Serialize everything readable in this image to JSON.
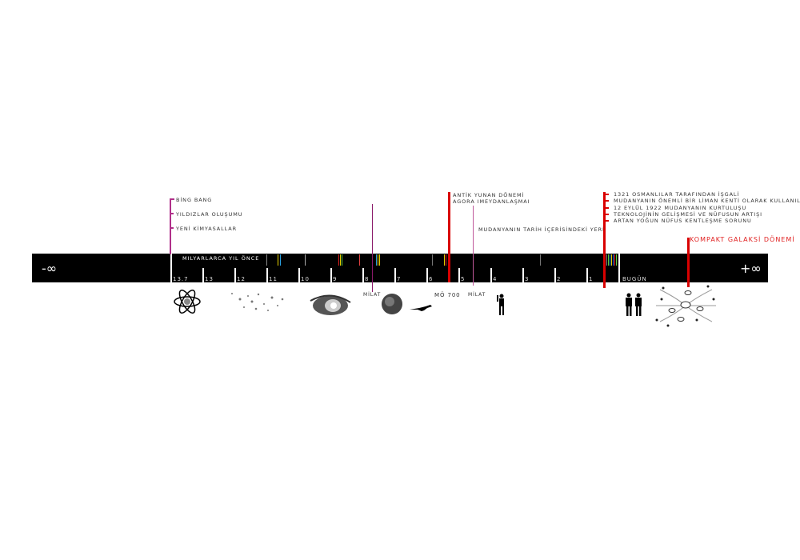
{
  "timeline": {
    "bar_title": "MILYARLARCA YIL ÖNCE",
    "minus_infinity": "-∞",
    "plus_infinity": "+∞",
    "today_label": "BUGÜN",
    "ticks": [
      "13.7",
      "13",
      "12",
      "11",
      "10",
      "9",
      "8",
      "7",
      "6",
      "5",
      "4",
      "3",
      "2",
      "1"
    ]
  },
  "cosmic_events": [
    "BİNG BANG",
    "YILDIZLAR OLUŞUMU",
    "YENİ KİMYASALLAR"
  ],
  "milat_label_1": "MİLAT",
  "milat_label_2": "MİLAT",
  "antik": {
    "line1": "ANTİK YUNAN DÖNEMİ",
    "line2": "AGORA IMEYDANLAŞMAI",
    "date": "MÖ 700"
  },
  "mudanya_history": "MUDANYANIN TARİH İÇERİSİNDEKİ YERİ",
  "modern_events": [
    "1321 OSMANLILAR TARAFINDAN İŞGALİ",
    "MUDANYANIN ÖNEMLİ BİR LİMAN KENTİ OLARAK KULLANILMASI",
    "12 EYLÜL 1922 MUDANYANIN KURTULUŞU",
    "TEKNOLOJİNİN GELİŞMESİ VE NÜFUSUN ARTIŞI",
    "ARTAN YOĞUN NÜFUS KENTLEŞME SORUNU"
  ],
  "future": "KOMPAKT GALAKSİ DÖNEMİ",
  "colors": {
    "magenta": "#b0308a",
    "purple": "#8a1a6a",
    "red": "#d90000",
    "pink": "#c0589a",
    "bar": "#000000"
  },
  "icons": [
    "atom-icon",
    "stars-icon",
    "galaxy-icon",
    "earth-icon",
    "dinosaur-icon",
    "human-silhouette-icon",
    "two-people-icon",
    "compact-galaxy-icon"
  ]
}
